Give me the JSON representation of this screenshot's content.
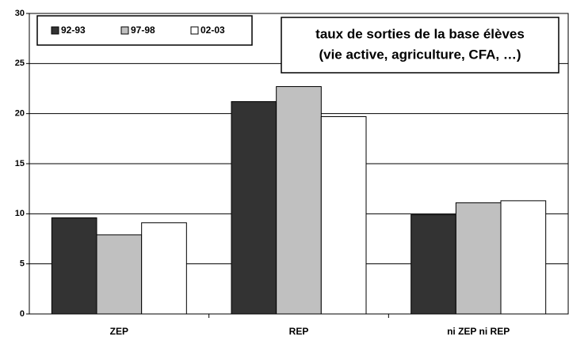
{
  "chart_data": {
    "type": "bar",
    "annotation": [
      "taux de sorties de la base élèves",
      "(vie active, agriculture, CFA, …)"
    ],
    "categories": [
      "ZEP",
      "REP",
      "ni ZEP ni REP"
    ],
    "series": [
      {
        "name": "92-93",
        "color": "#333333",
        "values": [
          9.6,
          21.2,
          9.9
        ]
      },
      {
        "name": "97-98",
        "color": "#c0c0c0",
        "values": [
          7.9,
          22.7,
          11.1
        ]
      },
      {
        "name": "02-03",
        "color": "#ffffff",
        "values": [
          9.1,
          19.7,
          11.3
        ]
      }
    ],
    "ylim": [
      0,
      30
    ],
    "yticks": [
      0,
      5,
      10,
      15,
      20,
      25,
      30
    ],
    "grid": true,
    "legend": "top-left"
  }
}
